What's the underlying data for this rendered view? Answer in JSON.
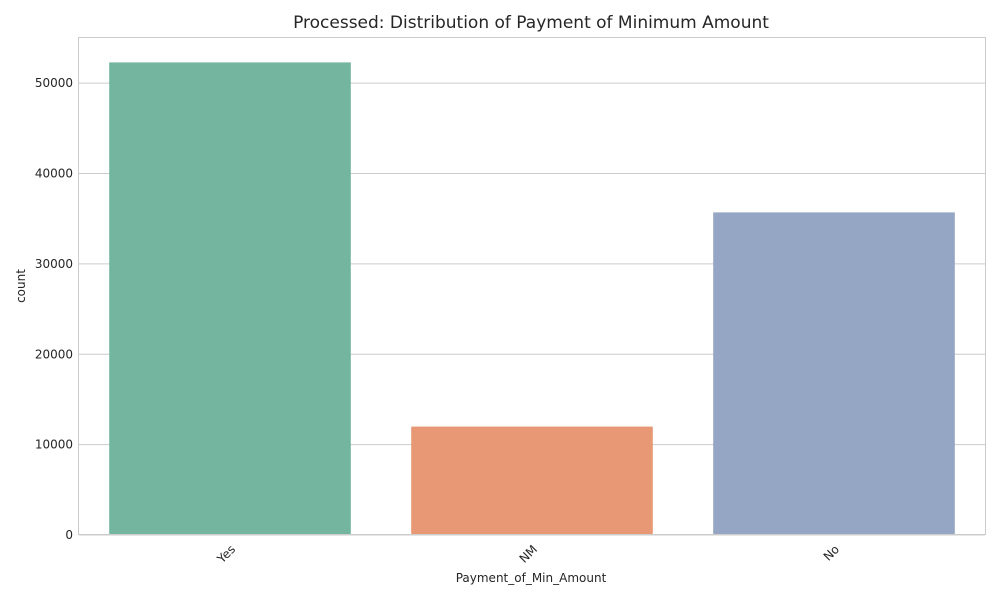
{
  "chart_data": {
    "type": "bar",
    "title": "Processed: Distribution of Payment of Minimum Amount",
    "xlabel": "Payment_of_Min_Amount",
    "ylabel": "count",
    "categories": [
      "Yes",
      "NM",
      "No"
    ],
    "values": [
      52300,
      12000,
      35700
    ],
    "colors": [
      "#73b59f",
      "#e89874",
      "#95a5c4"
    ],
    "ylim": [
      0,
      55000
    ],
    "yticks": [
      0,
      10000,
      20000,
      30000,
      40000,
      50000
    ],
    "ytick_labels": [
      "0",
      "10000",
      "20000",
      "30000",
      "40000",
      "50000"
    ],
    "grid": true
  }
}
